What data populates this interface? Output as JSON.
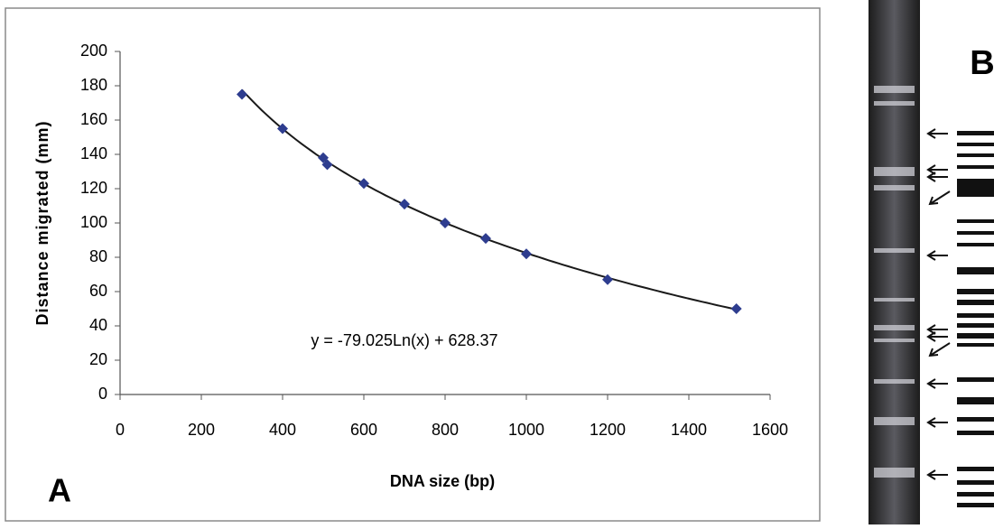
{
  "chart_data": {
    "type": "scatter",
    "x_label": "DNA size (bp)",
    "y_label": "Distance migrated (mm)",
    "x": [
      300,
      400,
      500,
      510,
      600,
      700,
      800,
      900,
      1000,
      1200,
      1517
    ],
    "series": [
      {
        "name": "Distance migrated (mm)",
        "color": "#2e3d8f",
        "values": [
          175,
          155,
          138,
          134,
          123,
          111,
          100,
          91,
          82,
          67,
          50
        ]
      }
    ],
    "xlim": [
      0,
      1600
    ],
    "xticks": [
      0,
      200,
      400,
      600,
      800,
      1000,
      1200,
      1400,
      1600
    ],
    "ylim": [
      0,
      200
    ],
    "yticks": [
      0,
      20,
      40,
      60,
      80,
      100,
      120,
      140,
      160,
      180,
      200
    ],
    "grid": false,
    "trendline": {
      "type": "log",
      "label": "y = -79.025Ln(x) + 628.37",
      "slope": -79.025,
      "intercept": 628.37,
      "color": "#1a1a1a"
    },
    "panel_labels": [
      "A",
      "B"
    ]
  }
}
